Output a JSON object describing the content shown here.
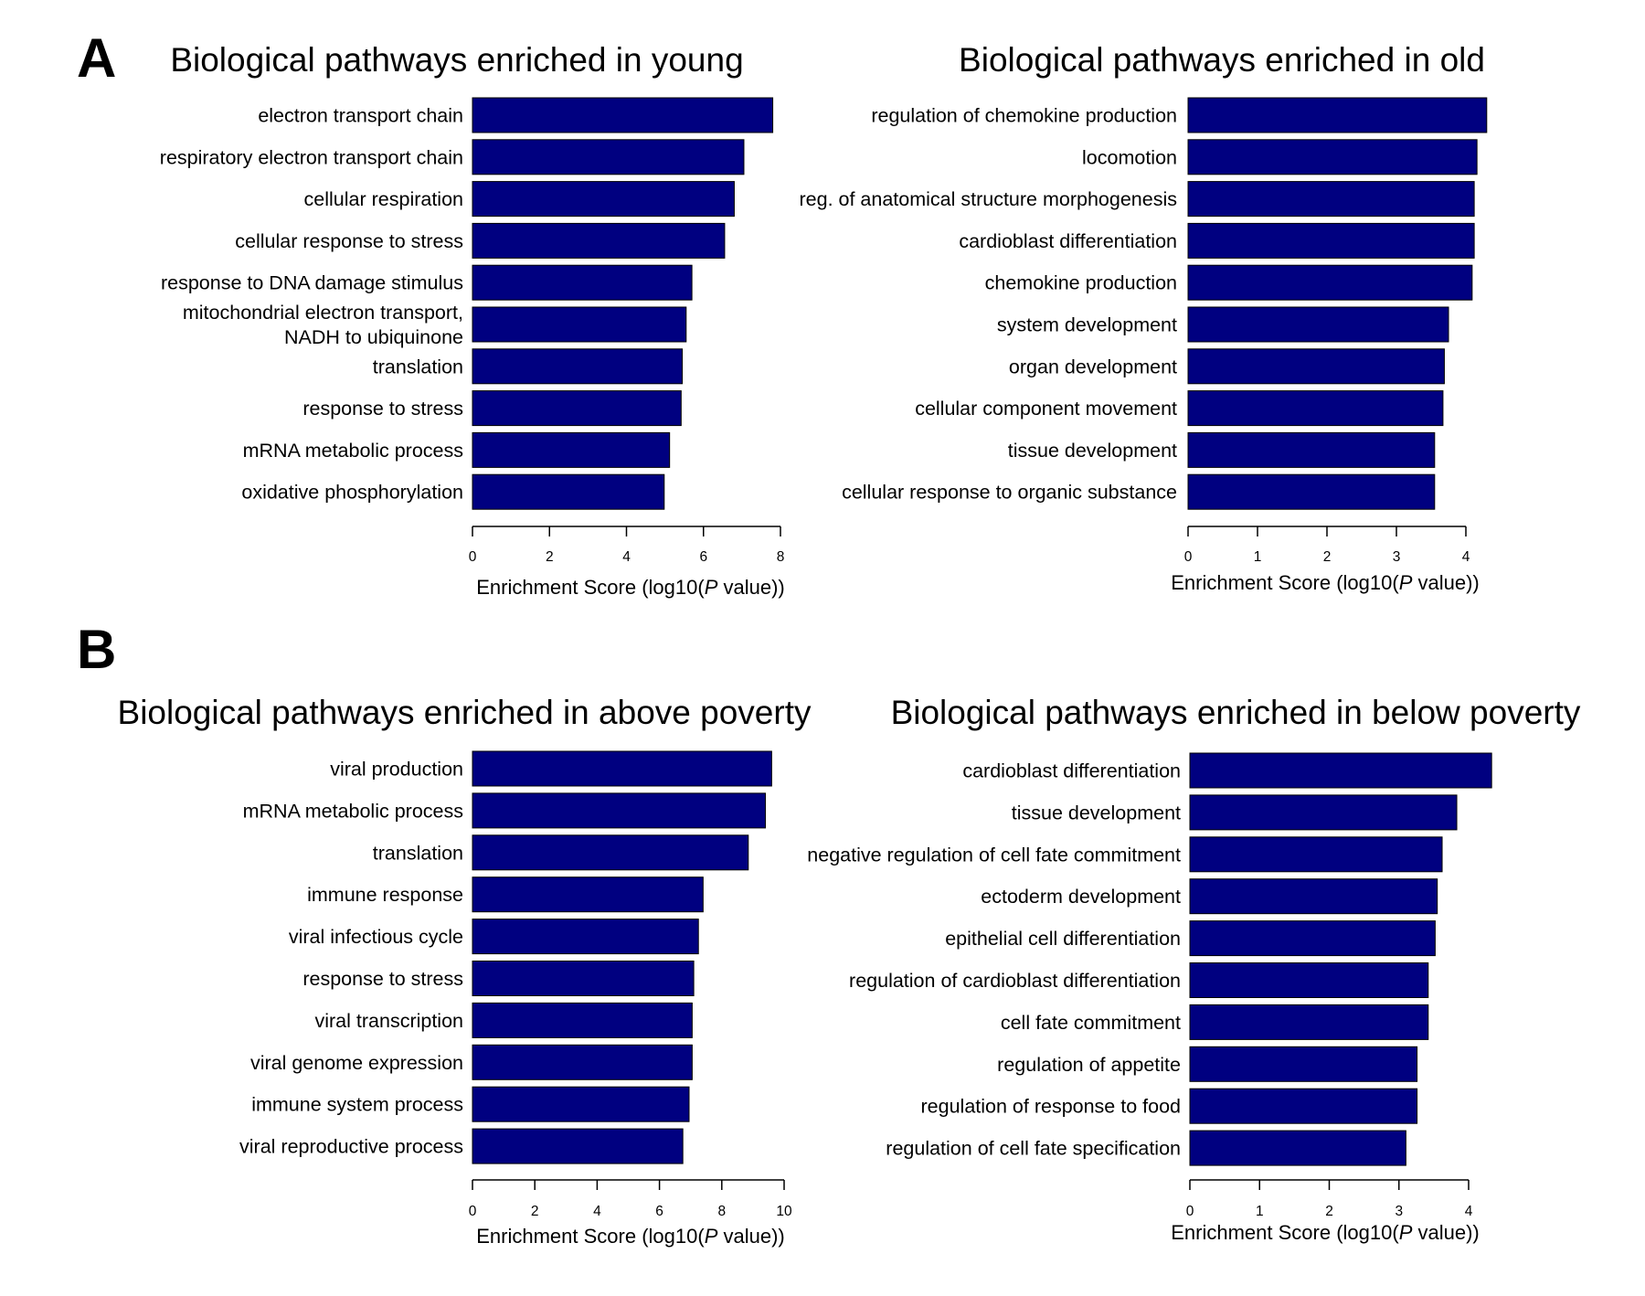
{
  "panels": [
    {
      "letter": "A"
    },
    {
      "letter": "B"
    }
  ],
  "colors": {
    "bar": "#000080",
    "axis": "#000000",
    "text": "#000000"
  },
  "chart_data": [
    {
      "type": "bar",
      "orientation": "horizontal",
      "panel": "A",
      "title": "Biological pathways enriched in young",
      "xlabel": "Enrichment Score (log10(P value))",
      "xlabel_parts": [
        "Enrichment Score (log10(",
        "P",
        " value))"
      ],
      "xlim": [
        0,
        8
      ],
      "xticks": [
        0,
        2,
        4,
        6,
        8
      ],
      "categories": [
        "electron transport chain",
        "respiratory electron transport chain",
        "cellular respiration",
        "cellular response to stress",
        "response to DNA damage stimulus",
        "mitochondrial electron transport,\nNADH to ubiquinone",
        "translation",
        "response to stress",
        "mRNA metabolic process",
        "oxidative phosphorylation"
      ],
      "values": [
        7.8,
        7.05,
        6.8,
        6.55,
        5.7,
        5.55,
        5.45,
        5.42,
        5.12,
        4.98
      ]
    },
    {
      "type": "bar",
      "orientation": "horizontal",
      "panel": "A",
      "title": "Biological pathways enriched in old",
      "xlabel": "Enrichment Score (log10(P value))",
      "xlabel_parts": [
        "Enrichment Score (log10(",
        "P",
        " value))"
      ],
      "xlim": [
        0,
        4
      ],
      "xticks": [
        0,
        1,
        2,
        3,
        4
      ],
      "categories": [
        "regulation of chemokine production",
        "locomotion",
        "reg. of anatomical structure morphogenesis",
        "cardioblast differentiation",
        "chemokine production",
        "system development",
        "organ development",
        "cellular component movement",
        "tissue development",
        "cellular response to organic substance"
      ],
      "values": [
        4.3,
        4.16,
        4.12,
        4.12,
        4.09,
        3.75,
        3.69,
        3.67,
        3.55,
        3.55
      ]
    },
    {
      "type": "bar",
      "orientation": "horizontal",
      "panel": "B",
      "title": "Biological pathways enriched in above poverty",
      "xlabel": "Enrichment Score (log10(P value))",
      "xlabel_parts": [
        "Enrichment Score (log10(",
        "P",
        " value))"
      ],
      "xlim": [
        0,
        10
      ],
      "xticks": [
        0,
        2,
        4,
        6,
        8,
        10
      ],
      "categories": [
        "viral production",
        "mRNA metabolic process",
        "translation",
        "immune response",
        "viral infectious cycle",
        "response to stress",
        "viral transcription",
        "viral genome expression",
        "immune system process",
        "viral reproductive process"
      ],
      "values": [
        9.6,
        9.4,
        8.85,
        7.4,
        7.25,
        7.1,
        7.05,
        7.05,
        6.95,
        6.75
      ]
    },
    {
      "type": "bar",
      "orientation": "horizontal",
      "panel": "B",
      "title": "Biological pathways enriched in below poverty",
      "xlabel": "Enrichment Score (log10(P value))",
      "xlabel_parts": [
        "Enrichment Score (log10(",
        "P",
        " value))"
      ],
      "xlim": [
        0,
        4
      ],
      "xticks": [
        0,
        1,
        2,
        3,
        4
      ],
      "categories": [
        "cardioblast differentiation",
        "tissue development",
        "negative regulation of cell fate commitment",
        "ectoderm development",
        "epithelial cell differentiation",
        "regulation of cardioblast differentiation",
        "cell fate commitment",
        "regulation of appetite",
        "regulation of response to food",
        "regulation of cell fate specification"
      ],
      "values": [
        4.33,
        3.83,
        3.62,
        3.55,
        3.52,
        3.42,
        3.42,
        3.26,
        3.26,
        3.1
      ]
    }
  ]
}
